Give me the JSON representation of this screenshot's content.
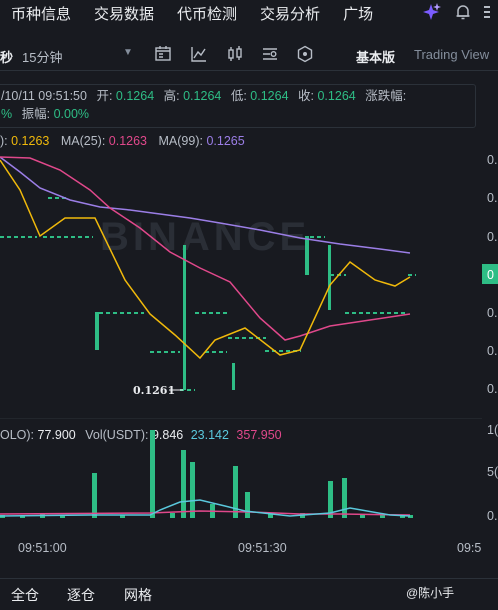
{
  "nav": {
    "items": [
      "币种信息",
      "交易数据",
      "代币检测",
      "交易分析",
      "广场"
    ]
  },
  "toolbar": {
    "unit_fragment": "秒",
    "timeframe": "15分钟",
    "basic_label": "基本版",
    "tv_label": "Trading View",
    "icons": [
      "calendar-icon",
      "indicator-icon",
      "candle-type-icon",
      "settings-icon",
      "hexagon-icon"
    ]
  },
  "ohlc": {
    "date": "/10/11 09:51:50",
    "open_label": "开:",
    "open": "0.1264",
    "high_label": "高:",
    "high": "0.1264",
    "low_label": "低:",
    "low": "0.1264",
    "close_label": "收:",
    "close": "0.1264",
    "change_label": "涨跌幅:",
    "change_frag": "%",
    "amp_label": "振幅:",
    "amp": "0.00%"
  },
  "ma": {
    "ma7_val": "0.1263",
    "ma25_label": "MA(25):",
    "ma25_val": "0.1263",
    "ma99_label": "MA(99):",
    "ma99_val": "0.1265",
    "colors": {
      "ma7": "#f0b90b",
      "ma25": "#e0488b",
      "ma99": "#9b7ee6"
    }
  },
  "price_axis": {
    "tick_prefix": "0.",
    "current_label": "0"
  },
  "low_marker": "0.1261",
  "volume": {
    "vol_label_frag": "OLO):",
    "vol_val": "77.900",
    "usdt_label": "Vol(USDT):",
    "usdt_val": "9.846",
    "ma5_val": "23.142",
    "ma10_val": "357.950",
    "axis_ticks": [
      "1(",
      "5(",
      "0."
    ]
  },
  "time_axis": [
    "09:51:00",
    "09:51:30",
    "09:5"
  ],
  "bottom": {
    "items": [
      "全仓",
      "逐仓",
      "网格"
    ],
    "watermark": "@陈小手"
  },
  "colors": {
    "up": "#2ebd85",
    "down": "#f6465d",
    "bg": "#181a20"
  }
}
